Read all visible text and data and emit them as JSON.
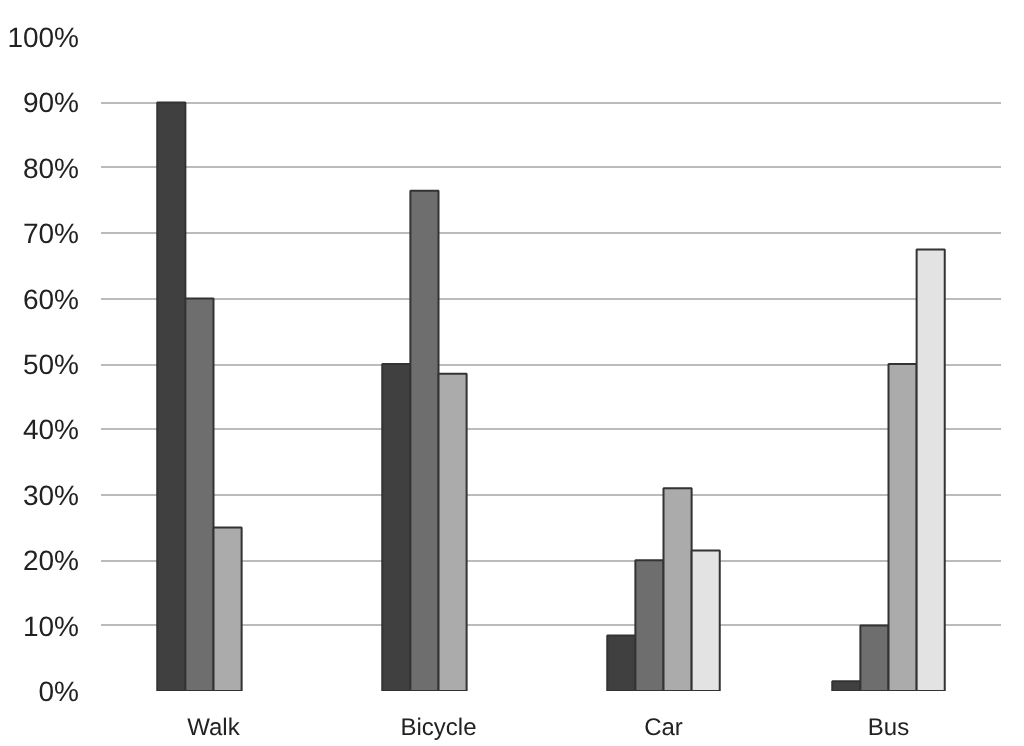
{
  "chart_data": {
    "type": "bar",
    "categories": [
      "Walk",
      "Bicycle",
      "Car",
      "Bus"
    ],
    "series": [
      {
        "color": "#404040",
        "values": [
          90,
          50,
          8.5,
          1.5
        ]
      },
      {
        "color": "#6e6e6e",
        "values": [
          60,
          76.5,
          20,
          10
        ]
      },
      {
        "color": "#ababab",
        "values": [
          25,
          48.5,
          31,
          50
        ]
      },
      {
        "color": "#e3e3e3",
        "values": [
          null,
          null,
          21.5,
          67.5
        ]
      }
    ],
    "ylim": [
      0,
      100
    ],
    "yticks": [
      {
        "value": 0,
        "label": "0%"
      },
      {
        "value": 10,
        "label": "10%"
      },
      {
        "value": 20,
        "label": "20%"
      },
      {
        "value": 30,
        "label": "30%"
      },
      {
        "value": 40,
        "label": "40%"
      },
      {
        "value": 50,
        "label": "50%"
      },
      {
        "value": 60,
        "label": "60%"
      },
      {
        "value": 70,
        "label": "70%"
      },
      {
        "value": 80,
        "label": "80%"
      },
      {
        "value": 90,
        "label": "90%"
      },
      {
        "value": 100,
        "label": "100%"
      }
    ],
    "grid": "y"
  }
}
